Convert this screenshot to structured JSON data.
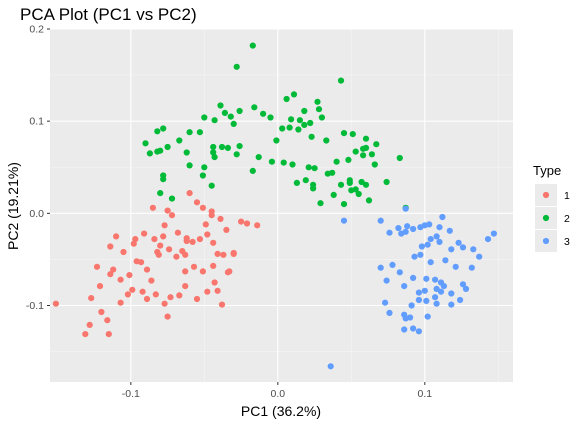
{
  "chart_data": {
    "type": "scatter",
    "title": "PCA Plot (PC1 vs PC2)",
    "xlabel": "PC1 (36.2%)",
    "ylabel": "PC2 (19.21%)",
    "xlim": [
      -0.155,
      0.16
    ],
    "ylim": [
      -0.183,
      0.2
    ],
    "x_ticks": [
      -0.1,
      0.0,
      0.1
    ],
    "x_tick_labels": [
      "-0.1",
      "0.0",
      "0.1"
    ],
    "y_ticks": [
      -0.1,
      0.0,
      0.1,
      0.2
    ],
    "y_tick_labels": [
      "-0.1",
      "0.0",
      "0.1",
      "0.2"
    ],
    "grid": true,
    "legend": {
      "title": "Type",
      "position": "right"
    },
    "series": [
      {
        "name": "1",
        "color": "#F8766D",
        "points": [
          [
            -0.151,
            -0.098
          ],
          [
            -0.131,
            -0.131
          ],
          [
            -0.128,
            -0.121
          ],
          [
            -0.116,
            -0.116
          ],
          [
            -0.127,
            -0.092
          ],
          [
            -0.121,
            -0.079
          ],
          [
            -0.123,
            -0.058
          ],
          [
            -0.112,
            -0.061
          ],
          [
            -0.107,
            -0.072
          ],
          [
            -0.114,
            -0.066
          ],
          [
            -0.114,
            -0.036
          ],
          [
            -0.11,
            -0.025
          ],
          [
            -0.105,
            -0.042
          ],
          [
            -0.098,
            -0.033
          ],
          [
            -0.101,
            -0.067
          ],
          [
            -0.093,
            -0.053
          ],
          [
            -0.089,
            -0.061
          ],
          [
            -0.082,
            -0.042
          ],
          [
            -0.08,
            -0.035
          ],
          [
            -0.074,
            -0.039
          ],
          [
            -0.069,
            -0.047
          ],
          [
            -0.063,
            -0.045
          ],
          [
            -0.091,
            -0.022
          ],
          [
            -0.097,
            -0.028
          ],
          [
            -0.084,
            -0.028
          ],
          [
            -0.078,
            -0.025
          ],
          [
            -0.096,
            -0.052
          ],
          [
            -0.086,
            -0.073
          ],
          [
            -0.092,
            -0.085
          ],
          [
            -0.089,
            -0.093
          ],
          [
            -0.083,
            -0.088
          ],
          [
            -0.077,
            -0.098
          ],
          [
            -0.073,
            -0.091
          ],
          [
            -0.067,
            -0.089
          ],
          [
            -0.063,
            -0.079
          ],
          [
            -0.063,
            -0.063
          ],
          [
            -0.057,
            -0.058
          ],
          [
            -0.051,
            -0.063
          ],
          [
            -0.044,
            -0.057
          ],
          [
            -0.043,
            -0.075
          ],
          [
            -0.048,
            -0.085
          ],
          [
            -0.055,
            -0.093
          ],
          [
            -0.041,
            -0.084
          ],
          [
            -0.038,
            -0.099
          ],
          [
            -0.075,
            -0.112
          ],
          [
            -0.102,
            -0.088
          ],
          [
            -0.107,
            -0.097
          ],
          [
            -0.12,
            -0.107
          ],
          [
            -0.115,
            -0.131
          ],
          [
            -0.099,
            -0.083
          ],
          [
            -0.081,
            -0.045
          ],
          [
            -0.077,
            -0.013
          ],
          [
            -0.072,
            -0.002
          ],
          [
            -0.068,
            -0.021
          ],
          [
            -0.062,
            -0.027
          ],
          [
            -0.058,
            -0.031
          ],
          [
            -0.053,
            -0.028
          ],
          [
            -0.048,
            -0.023
          ],
          [
            -0.044,
            -0.032
          ],
          [
            -0.049,
            -0.012
          ],
          [
            -0.051,
            0.006
          ],
          [
            -0.045,
            0.002
          ],
          [
            -0.039,
            -0.006
          ],
          [
            -0.035,
            -0.018
          ],
          [
            -0.03,
            -0.043
          ],
          [
            -0.037,
            -0.045
          ],
          [
            -0.033,
            -0.063
          ],
          [
            -0.034,
            -0.064
          ],
          [
            -0.045,
            -0.002
          ],
          [
            -0.085,
            0.006
          ],
          [
            -0.075,
            0.003
          ],
          [
            -0.06,
            0.022
          ],
          [
            -0.055,
            0.012
          ],
          [
            -0.065,
            -0.041
          ],
          [
            -0.025,
            -0.009
          ],
          [
            -0.021,
            -0.011
          ],
          [
            -0.014,
            -0.013
          ],
          [
            -0.062,
            -0.03
          ],
          [
            -0.03,
            -0.044
          ],
          [
            -0.041,
            -0.044
          ]
        ]
      },
      {
        "name": "2",
        "color": "#00BA38",
        "points": [
          [
            -0.017,
            0.182
          ],
          [
            -0.028,
            0.159
          ],
          [
            -0.005,
            0.104
          ],
          [
            0.006,
            0.124
          ],
          [
            0.011,
            0.129
          ],
          [
            0.018,
            0.111
          ],
          [
            0.027,
            0.121
          ],
          [
            0.028,
            0.113
          ],
          [
            0.03,
            0.104
          ],
          [
            0.043,
            0.144
          ],
          [
            0.022,
            0.098
          ],
          [
            0.014,
            0.091
          ],
          [
            0.008,
            0.093
          ],
          [
            0.003,
            0.092
          ],
          [
            0.015,
            0.101
          ],
          [
            0.018,
            0.096
          ],
          [
            0.009,
            0.102
          ],
          [
            0.023,
            0.083
          ],
          [
            0.033,
            0.079
          ],
          [
            -0.001,
            0.079
          ],
          [
            -0.01,
            0.108
          ],
          [
            -0.016,
            0.115
          ],
          [
            -0.026,
            0.111
          ],
          [
            -0.036,
            0.109
          ],
          [
            -0.032,
            0.105
          ],
          [
            -0.039,
            0.117
          ],
          [
            -0.03,
            0.097
          ],
          [
            -0.05,
            0.104
          ],
          [
            -0.043,
            0.101
          ],
          [
            -0.053,
            0.088
          ],
          [
            -0.06,
            0.088
          ],
          [
            -0.062,
            0.066
          ],
          [
            -0.067,
            0.079
          ],
          [
            -0.075,
            0.072
          ],
          [
            -0.08,
            0.068
          ],
          [
            -0.078,
            0.092
          ],
          [
            -0.082,
            0.089
          ],
          [
            -0.09,
            0.076
          ],
          [
            -0.082,
            0.067
          ],
          [
            -0.087,
            0.065
          ],
          [
            -0.06,
            0.052
          ],
          [
            -0.043,
            0.061
          ],
          [
            -0.044,
            0.066
          ],
          [
            -0.044,
            0.072
          ],
          [
            -0.038,
            0.072
          ],
          [
            -0.034,
            0.071
          ],
          [
            -0.026,
            0.073
          ],
          [
            -0.028,
            0.064
          ],
          [
            -0.045,
            0.03
          ],
          [
            -0.051,
            0.041
          ],
          [
            -0.078,
            0.037
          ],
          [
            -0.072,
            0.016
          ],
          [
            -0.08,
            0.022
          ],
          [
            -0.078,
            0.041
          ],
          [
            -0.05,
            0.05
          ],
          [
            -0.017,
            0.046
          ],
          [
            -0.013,
            0.061
          ],
          [
            -0.004,
            0.056
          ],
          [
            0.004,
            0.055
          ],
          [
            0.01,
            0.053
          ],
          [
            0.021,
            0.05
          ],
          [
            0.025,
            0.049
          ],
          [
            0.034,
            0.043
          ],
          [
            0.048,
            0.058
          ],
          [
            0.053,
            0.067
          ],
          [
            0.06,
            0.071
          ],
          [
            0.064,
            0.064
          ],
          [
            0.045,
            0.087
          ],
          [
            0.051,
            0.086
          ],
          [
            0.058,
            0.07
          ],
          [
            0.06,
            0.081
          ],
          [
            0.067,
            0.075
          ],
          [
            0.049,
            0.033
          ],
          [
            0.057,
            0.034
          ],
          [
            0.053,
            0.026
          ],
          [
            0.06,
            0.031
          ],
          [
            0.05,
            0.025
          ],
          [
            0.043,
            0.031
          ],
          [
            0.038,
            0.02
          ],
          [
            0.024,
            0.031
          ],
          [
            0.013,
            0.033
          ],
          [
            0.019,
            0.036
          ],
          [
            0.045,
            0.01
          ],
          [
            0.055,
            0.021
          ],
          [
            0.029,
            0.011
          ],
          [
            0.024,
            0.027
          ],
          [
            0.049,
            0.036
          ],
          [
            0.037,
            0.044
          ],
          [
            0.083,
            0.06
          ],
          [
            0.074,
            0.034
          ],
          [
            0.058,
            0.063
          ],
          [
            0.066,
            0.053
          ],
          [
            0.04,
            0.056
          ],
          [
            0.062,
            0.014
          ],
          [
            0.087,
            0.006
          ]
        ]
      },
      {
        "name": "3",
        "color": "#619CFF",
        "points": [
          [
            0.087,
            0.005
          ],
          [
            0.045,
            -0.008
          ],
          [
            0.07,
            -0.008
          ],
          [
            0.082,
            -0.016
          ],
          [
            0.076,
            -0.021
          ],
          [
            0.084,
            -0.022
          ],
          [
            0.087,
            -0.02
          ],
          [
            0.088,
            -0.014
          ],
          [
            0.092,
            -0.017
          ],
          [
            0.097,
            -0.015
          ],
          [
            0.1,
            -0.013
          ],
          [
            0.103,
            -0.012
          ],
          [
            0.11,
            -0.015
          ],
          [
            0.108,
            -0.025
          ],
          [
            0.104,
            -0.028
          ],
          [
            0.102,
            -0.034
          ],
          [
            0.11,
            -0.031
          ],
          [
            0.117,
            -0.019
          ],
          [
            0.118,
            -0.039
          ],
          [
            0.123,
            -0.032
          ],
          [
            0.126,
            -0.037
          ],
          [
            0.133,
            -0.039
          ],
          [
            0.137,
            -0.047
          ],
          [
            0.143,
            -0.028
          ],
          [
            0.147,
            -0.022
          ],
          [
            0.132,
            -0.059
          ],
          [
            0.126,
            -0.077
          ],
          [
            0.118,
            -0.087
          ],
          [
            0.113,
            -0.079
          ],
          [
            0.111,
            -0.075
          ],
          [
            0.108,
            -0.082
          ],
          [
            0.1,
            -0.084
          ],
          [
            0.096,
            -0.094
          ],
          [
            0.091,
            -0.1
          ],
          [
            0.086,
            -0.11
          ],
          [
            0.087,
            -0.114
          ],
          [
            0.076,
            -0.108
          ],
          [
            0.073,
            -0.097
          ],
          [
            0.078,
            -0.056
          ],
          [
            0.07,
            -0.059
          ],
          [
            0.074,
            -0.073
          ],
          [
            0.083,
            -0.064
          ],
          [
            0.086,
            -0.079
          ],
          [
            0.096,
            -0.086
          ],
          [
            0.092,
            -0.07
          ],
          [
            0.101,
            -0.071
          ],
          [
            0.107,
            -0.072
          ],
          [
            0.111,
            -0.085
          ],
          [
            0.107,
            -0.091
          ],
          [
            0.101,
            -0.095
          ],
          [
            0.102,
            -0.112
          ],
          [
            0.096,
            -0.128
          ],
          [
            0.092,
            -0.125
          ],
          [
            0.086,
            -0.126
          ],
          [
            0.09,
            -0.113
          ],
          [
            0.108,
            -0.098
          ],
          [
            0.118,
            -0.099
          ],
          [
            0.124,
            -0.094
          ],
          [
            0.128,
            -0.082
          ],
          [
            0.036,
            -0.166
          ],
          [
            0.097,
            -0.045
          ],
          [
            0.104,
            -0.053
          ],
          [
            0.093,
            -0.047
          ],
          [
            0.114,
            -0.051
          ],
          [
            0.121,
            -0.058
          ],
          [
            0.098,
            -0.036
          ],
          [
            0.112,
            -0.004
          ]
        ]
      }
    ]
  }
}
